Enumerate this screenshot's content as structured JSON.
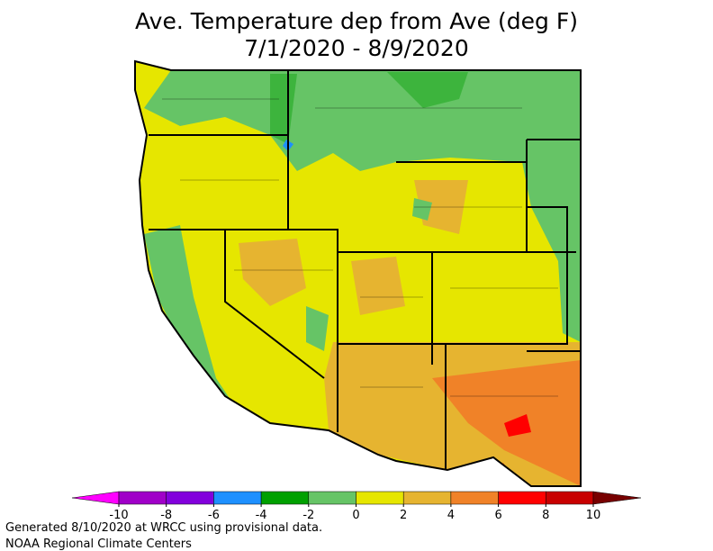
{
  "header": {
    "title": "Ave. Temperature dep from Ave (deg F)",
    "subtitle": "7/1/2020 - 8/9/2020"
  },
  "legend": {
    "ticks": [
      -10,
      -8,
      -6,
      -4,
      -2,
      0,
      2,
      4,
      6,
      8,
      10
    ],
    "colors": [
      "#ff00ff",
      "#a000c8",
      "#8200dc",
      "#1e90ff",
      "#00a000",
      "#66c466",
      "#e6e600",
      "#e6b430",
      "#f08228",
      "#ff0000",
      "#c80000",
      "#780000"
    ]
  },
  "footer": {
    "lines": [
      "Generated 8/10/2020 at WRCC using provisional data.",
      "NOAA Regional Climate Centers"
    ]
  }
}
